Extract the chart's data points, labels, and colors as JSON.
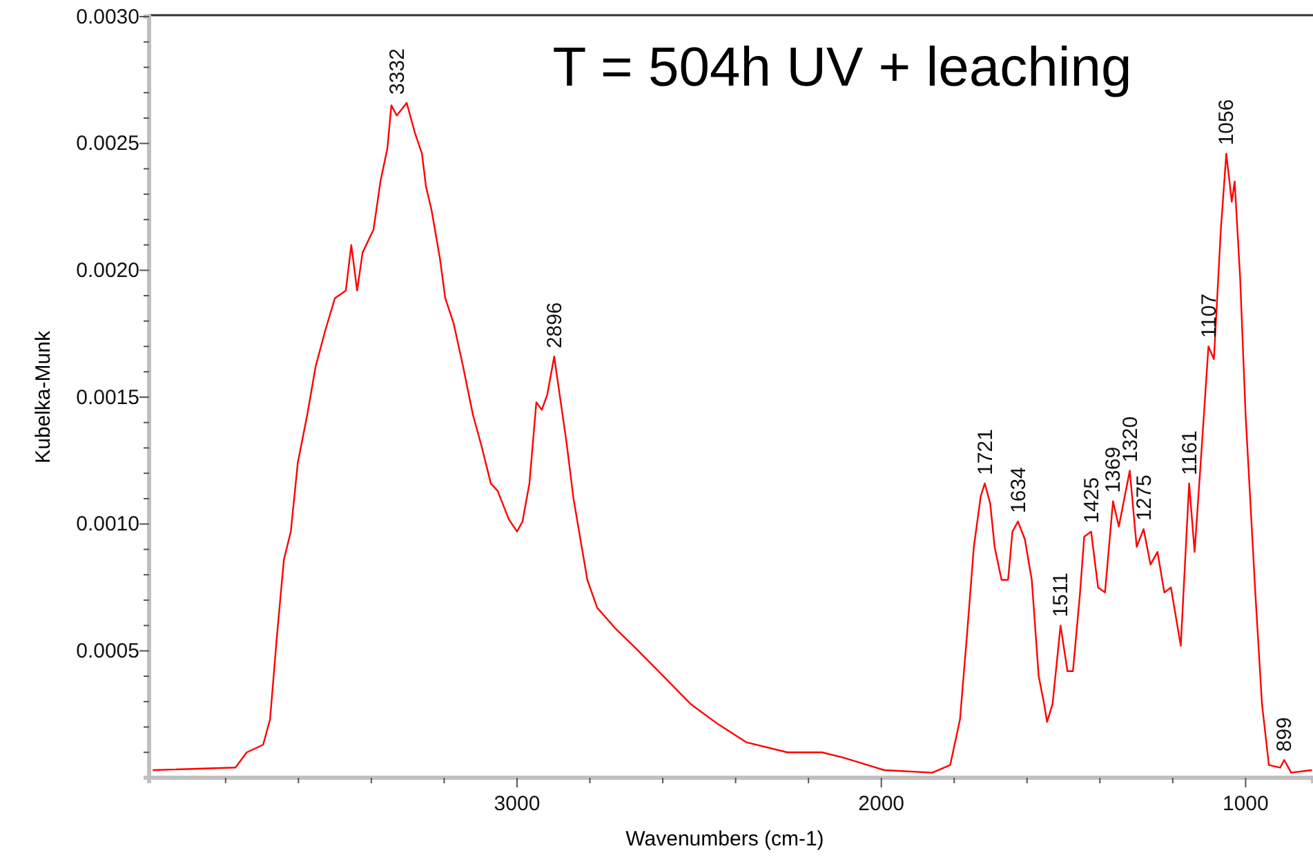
{
  "chart_data": {
    "type": "line",
    "title": "T = 504h UV + leaching",
    "xlabel": "Wavenumbers (cm-1)",
    "ylabel": "Kubelka-Munk",
    "xlim": [
      4010,
      815
    ],
    "ylim": [
      0,
      0.003
    ],
    "xticks": [
      {
        "value": 3800,
        "label": null
      },
      {
        "value": 3600,
        "label": null
      },
      {
        "value": 3400,
        "label": null
      },
      {
        "value": 3200,
        "label": null
      },
      3000,
      {
        "value": 2800,
        "label": null
      },
      {
        "value": 2600,
        "label": null
      },
      {
        "value": 2400,
        "label": null
      },
      {
        "value": 2200,
        "label": null
      },
      2000,
      {
        "value": 1800,
        "label": null
      },
      {
        "value": 1600,
        "label": null
      },
      {
        "value": 1400,
        "label": null
      },
      {
        "value": 1200,
        "label": null
      },
      1000
    ],
    "yticks": [
      {
        "value": 0.0001,
        "label": null
      },
      {
        "value": 0.0002,
        "label": null
      },
      {
        "value": 0.0003,
        "label": null
      },
      {
        "value": 0.0004,
        "label": null
      },
      {
        "value": 0.0005,
        "label": "0.0005"
      },
      {
        "value": 0.0006,
        "label": null
      },
      {
        "value": 0.0007,
        "label": null
      },
      {
        "value": 0.0008,
        "label": null
      },
      {
        "value": 0.0009,
        "label": null
      },
      {
        "value": 0.001,
        "label": "0.0010"
      },
      {
        "value": 0.0011,
        "label": null
      },
      {
        "value": 0.0012,
        "label": null
      },
      {
        "value": 0.0013,
        "label": null
      },
      {
        "value": 0.0014,
        "label": null
      },
      {
        "value": 0.0015,
        "label": "0.0015"
      },
      {
        "value": 0.0016,
        "label": null
      },
      {
        "value": 0.0017,
        "label": null
      },
      {
        "value": 0.0018,
        "label": null
      },
      {
        "value": 0.0019,
        "label": null
      },
      {
        "value": 0.002,
        "label": "0.0020"
      },
      {
        "value": 0.0021,
        "label": null
      },
      {
        "value": 0.0022,
        "label": null
      },
      {
        "value": 0.0023,
        "label": null
      },
      {
        "value": 0.0024,
        "label": null
      },
      {
        "value": 0.0025,
        "label": "0.0025"
      },
      {
        "value": 0.0026,
        "label": null
      },
      {
        "value": 0.0027,
        "label": null
      },
      {
        "value": 0.0028,
        "label": null
      },
      {
        "value": 0.0029,
        "label": null
      },
      {
        "value": 0.003,
        "label": "0.0030"
      }
    ],
    "grid": false,
    "marker": "none",
    "line_style": "solid",
    "series": [
      {
        "color": "#ff0000",
        "x": [
          4000,
          3773,
          3742,
          3697,
          3678,
          3659,
          3640,
          3621,
          3602,
          3576,
          3553,
          3527,
          3500,
          3470,
          3455,
          3439,
          3424,
          3394,
          3375,
          3356,
          3345,
          3330,
          3303,
          3280,
          3261,
          3250,
          3235,
          3212,
          3197,
          3174,
          3148,
          3121,
          3098,
          3072,
          3053,
          3023,
          3000,
          2985,
          2966,
          2947,
          2932,
          2917,
          2898,
          2883,
          2864,
          2845,
          2826,
          2807,
          2780,
          2731,
          2674,
          2598,
          2523,
          2447,
          2371,
          2258,
          2163,
          2106,
          1992,
          1860,
          1811,
          1784,
          1765,
          1746,
          1727,
          1716,
          1701,
          1689,
          1670,
          1652,
          1640,
          1625,
          1606,
          1587,
          1568,
          1553,
          1545,
          1530,
          1508,
          1489,
          1474,
          1455,
          1443,
          1424,
          1405,
          1386,
          1364,
          1348,
          1318,
          1299,
          1280,
          1261,
          1242,
          1223,
          1205,
          1178,
          1155,
          1140,
          1121,
          1102,
          1087,
          1068,
          1053,
          1038,
          1030,
          1015,
          1000,
          973,
          955,
          936,
          905,
          894,
          875,
          818
        ],
        "values": [
          3e-05,
          4e-05,
          0.0001,
          0.00013,
          0.00023,
          0.00056,
          0.00086,
          0.00097,
          0.00124,
          0.00143,
          0.00162,
          0.00176,
          0.00189,
          0.00192,
          0.0021,
          0.00192,
          0.00207,
          0.00216,
          0.00235,
          0.00248,
          0.00265,
          0.00261,
          0.00266,
          0.00254,
          0.00246,
          0.00233,
          0.00224,
          0.00205,
          0.00189,
          0.00179,
          0.00162,
          0.00143,
          0.00131,
          0.00116,
          0.00113,
          0.00102,
          0.00097,
          0.00101,
          0.00116,
          0.00148,
          0.00145,
          0.00151,
          0.00166,
          0.00151,
          0.00132,
          0.0011,
          0.00094,
          0.00078,
          0.00067,
          0.00059,
          0.00051,
          0.0004,
          0.00029,
          0.00021,
          0.00014,
          0.0001,
          0.0001,
          8e-05,
          3e-05,
          2e-05,
          5e-05,
          0.00023,
          0.00056,
          0.00091,
          0.00111,
          0.00116,
          0.00108,
          0.00091,
          0.00078,
          0.00078,
          0.00097,
          0.00101,
          0.00094,
          0.00078,
          0.0004,
          0.00029,
          0.00022,
          0.00029,
          0.0006,
          0.00042,
          0.00042,
          0.00072,
          0.00095,
          0.00097,
          0.00075,
          0.00073,
          0.00109,
          0.00099,
          0.00121,
          0.00091,
          0.00098,
          0.00084,
          0.00089,
          0.00073,
          0.00075,
          0.00052,
          0.00116,
          0.00089,
          0.00129,
          0.0017,
          0.00165,
          0.00216,
          0.00246,
          0.00227,
          0.00235,
          0.00197,
          0.00143,
          0.00072,
          0.00029,
          5e-05,
          4e-05,
          7e-05,
          2e-05,
          3e-05
        ]
      }
    ],
    "annotations": [
      {
        "text": "3332",
        "x": 3330,
        "y": 0.00266
      },
      {
        "text": "2896",
        "x": 2898,
        "y": 0.00166
      },
      {
        "text": "1721",
        "x": 1716,
        "y": 0.00116
      },
      {
        "text": "1634",
        "x": 1625,
        "y": 0.00101
      },
      {
        "text": "1511",
        "x": 1508,
        "y": 0.0006
      },
      {
        "text": "1425",
        "x": 1424,
        "y": 0.00097
      },
      {
        "text": "1369",
        "x": 1364,
        "y": 0.00109
      },
      {
        "text": "1320",
        "x": 1318,
        "y": 0.00121
      },
      {
        "text": "1275",
        "x": 1280,
        "y": 0.00098
      },
      {
        "text": "1161",
        "x": 1155,
        "y": 0.00116
      },
      {
        "text": "1107",
        "x": 1102,
        "y": 0.0017
      },
      {
        "text": "1056",
        "x": 1053,
        "y": 0.00246
      },
      {
        "text": "899",
        "x": 894,
        "y": 7e-05
      }
    ]
  }
}
